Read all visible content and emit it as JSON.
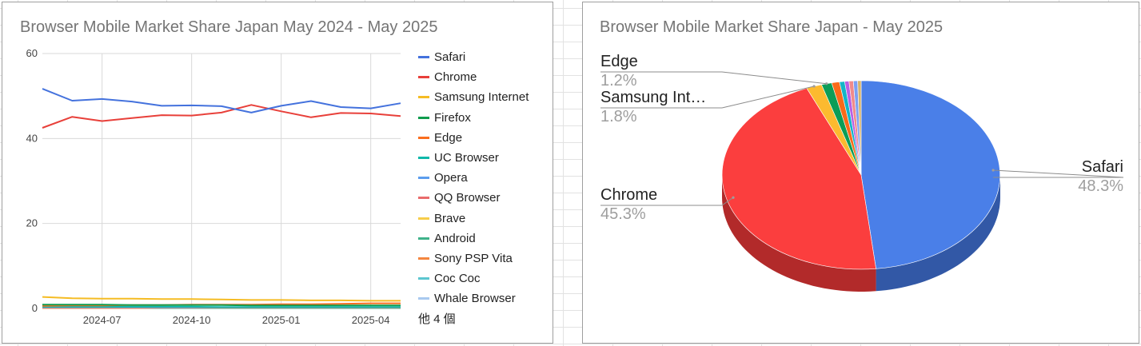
{
  "line_chart": {
    "title": "Browser Mobile Market Share Japan May 2024 - May 2025",
    "legend_more": "他 4 個"
  },
  "pie_chart": {
    "title": "Browser Mobile Market Share Japan - May 2025"
  },
  "chart_data": [
    {
      "type": "line",
      "title": "Browser Mobile Market Share Japan May 2024 - May 2025",
      "xlabel": "",
      "ylabel": "",
      "x": [
        "2024-05",
        "2024-06",
        "2024-07",
        "2024-08",
        "2024-09",
        "2024-10",
        "2024-11",
        "2024-12",
        "2025-01",
        "2025-02",
        "2025-03",
        "2025-04",
        "2025-05"
      ],
      "x_tick_labels": [
        "2024-07",
        "2024-10",
        "2025-01",
        "2025-04"
      ],
      "y_ticks": [
        0,
        20,
        40,
        60
      ],
      "ylim": [
        0,
        60
      ],
      "grid": true,
      "legend_position": "right",
      "series": [
        {
          "name": "Safari",
          "color": "#4472dd",
          "values": [
            51.7,
            48.9,
            49.3,
            48.7,
            47.7,
            47.8,
            47.6,
            46.1,
            47.7,
            48.8,
            47.4,
            47.1,
            48.3
          ]
        },
        {
          "name": "Chrome",
          "color": "#e8403a",
          "values": [
            42.5,
            45.1,
            44.1,
            44.8,
            45.5,
            45.4,
            46.1,
            47.9,
            46.4,
            45.0,
            46.0,
            45.9,
            45.3
          ]
        },
        {
          "name": "Samsung Internet",
          "color": "#f5bc24",
          "values": [
            2.7,
            2.4,
            2.3,
            2.3,
            2.2,
            2.2,
            2.1,
            2.0,
            2.0,
            1.9,
            1.9,
            1.8,
            1.8
          ]
        },
        {
          "name": "Firefox",
          "color": "#109c4e",
          "values": [
            0.9,
            0.9,
            0.9,
            0.8,
            0.8,
            0.8,
            0.8,
            0.7,
            0.7,
            0.7,
            0.7,
            0.7,
            0.7
          ]
        },
        {
          "name": "Edge",
          "color": "#fa6e1f",
          "values": [
            0.6,
            0.7,
            0.7,
            0.8,
            0.8,
            0.9,
            0.9,
            0.9,
            1.0,
            1.0,
            1.1,
            1.2,
            1.2
          ]
        },
        {
          "name": "UC Browser",
          "color": "#0fb8aa",
          "values": [
            0.4,
            0.4,
            0.4,
            0.4,
            0.4,
            0.4,
            0.3,
            0.3,
            0.3,
            0.3,
            0.3,
            0.3,
            0.3
          ]
        },
        {
          "name": "Opera",
          "color": "#5b9ded",
          "values": [
            0.3,
            0.3,
            0.3,
            0.3,
            0.3,
            0.3,
            0.3,
            0.3,
            0.3,
            0.3,
            0.3,
            0.3,
            0.3
          ]
        },
        {
          "name": "QQ Browser",
          "color": "#e96c6c",
          "values": [
            0.2,
            0.2,
            0.2,
            0.2,
            0.2,
            0.2,
            0.2,
            0.2,
            0.2,
            0.2,
            0.2,
            0.2,
            0.2
          ]
        },
        {
          "name": "Brave",
          "color": "#f7cd4a",
          "values": [
            0.2,
            0.2,
            0.2,
            0.2,
            0.2,
            0.2,
            0.2,
            0.2,
            0.2,
            0.2,
            0.2,
            0.2,
            0.2
          ]
        },
        {
          "name": "Android",
          "color": "#3fb28a",
          "values": [
            0.2,
            0.2,
            0.2,
            0.2,
            0.1,
            0.1,
            0.1,
            0.1,
            0.1,
            0.1,
            0.1,
            0.1,
            0.1
          ]
        },
        {
          "name": "Sony PSP Vita",
          "color": "#f4863f",
          "values": [
            0.1,
            0.1,
            0.1,
            0.1,
            0.1,
            0.1,
            0.1,
            0.1,
            0.1,
            0.1,
            0.1,
            0.1,
            0.1
          ]
        },
        {
          "name": "Coc Coc",
          "color": "#5cc6d0",
          "values": [
            0.1,
            0.1,
            0.1,
            0.1,
            0.1,
            0.1,
            0.1,
            0.1,
            0.1,
            0.1,
            0.1,
            0.1,
            0.1
          ]
        },
        {
          "name": "Whale Browser",
          "color": "#a9c9ef",
          "values": [
            0.1,
            0.1,
            0.1,
            0.1,
            0.1,
            0.1,
            0.1,
            0.1,
            0.1,
            0.1,
            0.1,
            0.1,
            0.1
          ]
        }
      ]
    },
    {
      "type": "pie",
      "style": "3d",
      "title": "Browser Mobile Market Share Japan - May 2025",
      "slices": [
        {
          "name": "Safari",
          "value": 48.3,
          "label": "48.3%",
          "color": "#4a7fe8",
          "side_color": "#3258a6",
          "labeled": true
        },
        {
          "name": "Chrome",
          "value": 45.3,
          "label": "45.3%",
          "color": "#fb3e3e",
          "side_color": "#b22a2a",
          "labeled": true
        },
        {
          "name": "Samsung Int…",
          "value": 1.8,
          "label": "1.8%",
          "color": "#fcba2f",
          "side_color": "#b58721",
          "labeled": true
        },
        {
          "name": "Edge",
          "value": 1.2,
          "label": "1.2%",
          "color": "#0c9d57",
          "side_color": "#08703e",
          "labeled": true
        },
        {
          "name": "",
          "value": 0.9,
          "label": "",
          "color": "#fa6a19",
          "side_color": "#b44c12",
          "labeled": false
        },
        {
          "name": "",
          "value": 0.6,
          "label": "",
          "color": "#13b5c7",
          "side_color": "#0e828f",
          "labeled": false
        },
        {
          "name": "",
          "value": 0.5,
          "label": "",
          "color": "#b95fe4",
          "side_color": "#8444a3",
          "labeled": false
        },
        {
          "name": "",
          "value": 0.5,
          "label": "",
          "color": "#f08a8a",
          "side_color": "#ad6363",
          "labeled": false
        },
        {
          "name": "",
          "value": 0.5,
          "label": "",
          "color": "#7d9ff2",
          "side_color": "#5a72ad",
          "labeled": false
        },
        {
          "name": "",
          "value": 0.4,
          "label": "",
          "color": "#d8b46c",
          "side_color": "#9b814d",
          "labeled": false
        }
      ]
    }
  ]
}
